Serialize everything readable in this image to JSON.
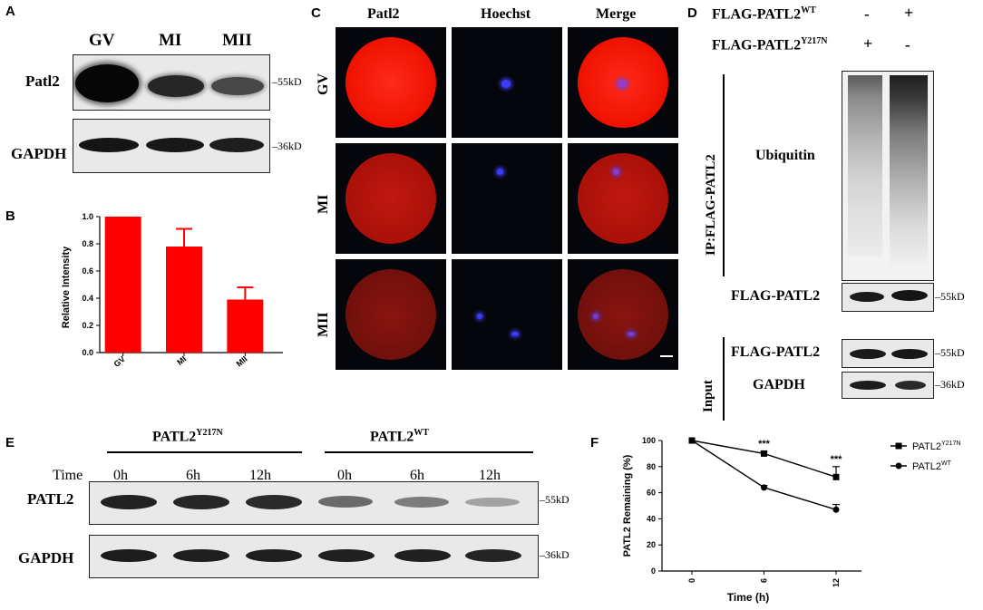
{
  "panel_labels": {
    "a": "A",
    "b": "B",
    "c": "C",
    "d": "D",
    "e": "E",
    "f": "F"
  },
  "panel_a": {
    "lanes": [
      "GV",
      "MI",
      "MII"
    ],
    "rows": [
      "Patl2",
      "GAPDH"
    ],
    "markers": [
      "55kD",
      "36kD"
    ]
  },
  "panel_b": {
    "chart_data": {
      "type": "bar",
      "categories": [
        "GV",
        "MI",
        "MII"
      ],
      "values": [
        1.0,
        0.78,
        0.39
      ],
      "errors": [
        0,
        0.13,
        0.09
      ],
      "ylabel": "Relative Intensity",
      "ylim": [
        0,
        1.0
      ],
      "yticks": [
        "0.0",
        "0.2",
        "0.4",
        "0.6",
        "0.8",
        "1.0"
      ],
      "bar_color": "#ff0000"
    }
  },
  "panel_c": {
    "columns": [
      "Patl2",
      "Hoechst",
      "Merge"
    ],
    "rows": [
      "GV",
      "MI",
      "MII"
    ]
  },
  "panel_d": {
    "cond_wt": "FLAG-PATL2",
    "cond_wt_sup": "WT",
    "cond_mut": "FLAG-PATL2",
    "cond_mut_sup": "Y217N",
    "wt_signs": [
      "-",
      "+"
    ],
    "mut_signs": [
      "+",
      "-"
    ],
    "ip_label": "IP:FLAG-PATL2",
    "ubiquitin": "Ubiquitin",
    "flag_label": "FLAG-PATL2",
    "input_label": "Input",
    "input_flag": "FLAG-PATL2",
    "input_gapdh": "GAPDH",
    "markers": [
      "55kD",
      "55kD",
      "36kD"
    ]
  },
  "panel_e": {
    "group_mut": "PATL2",
    "group_mut_sup": "Y217N",
    "group_wt": "PATL2",
    "group_wt_sup": "WT",
    "time_label": "Time",
    "times": [
      "0h",
      "6h",
      "12h",
      "0h",
      "6h",
      "12h"
    ],
    "rows": [
      "PATL2",
      "GAPDH"
    ],
    "markers": [
      "55kD",
      "36kD"
    ]
  },
  "panel_f": {
    "chart_data": {
      "type": "line",
      "x": [
        0,
        6,
        12
      ],
      "xticks": [
        "0",
        "6",
        "12"
      ],
      "xlabel": "Time (h)",
      "ylabel": "PATL2 Remaining (%)",
      "ylim": [
        0,
        100
      ],
      "yticks": [
        "0",
        "20",
        "40",
        "60",
        "80",
        "100"
      ],
      "series": [
        {
          "name": "PATL2",
          "sup": "Y217N",
          "marker": "square",
          "values": [
            100,
            90,
            72
          ],
          "errors": [
            0,
            1.5,
            8
          ]
        },
        {
          "name": "PATL2",
          "sup": "WT",
          "marker": "circle",
          "values": [
            100,
            64,
            47
          ],
          "errors": [
            0,
            1.5,
            4
          ]
        }
      ],
      "annotations": [
        "***",
        "***"
      ]
    }
  }
}
